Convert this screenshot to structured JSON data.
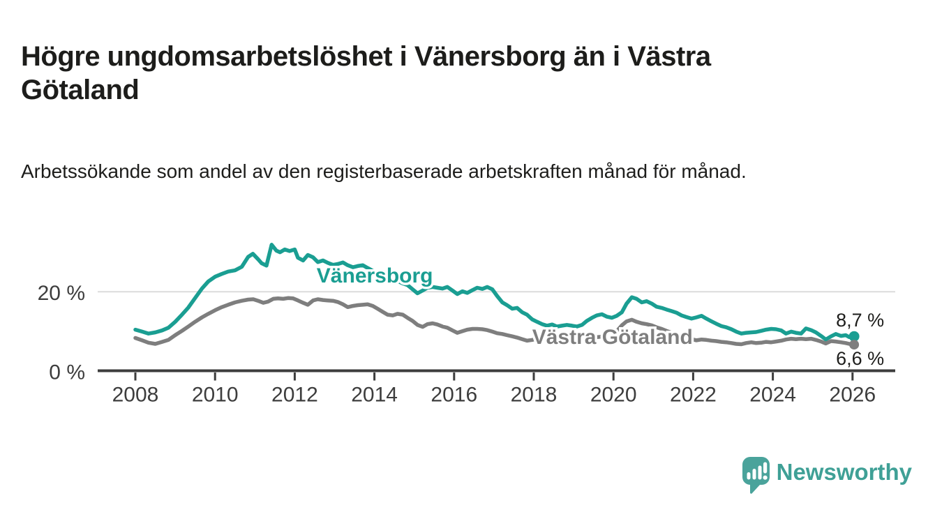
{
  "header": {
    "title": "Högre ungdomsarbetslöshet i Vänersborg än i Västra Götaland",
    "subtitle": "Arbetssökande som andel av den registerbaserade arbetskraften månad för månad."
  },
  "colors": {
    "accent_teal": "#1a9e92",
    "series_gray": "#7e7e7e",
    "text_dark": "#1d1d1b",
    "axis_text": "#3d3d3d",
    "gridline": "#dcdcdc",
    "logo_teal": "#3fa096"
  },
  "logo": {
    "text": "Newsworthy",
    "icon": "newsworthy-speech-bubble-bar-chart-icon"
  },
  "chart_data": {
    "type": "line",
    "title": "Högre ungdomsarbetslöshet i Vänersborg än i Västra Götaland",
    "subtitle": "Arbetssökande som andel av den registerbaserade arbetskraften månad för månad.",
    "unit": "%",
    "x_axis": {
      "ticks": [
        2008,
        2010,
        2012,
        2014,
        2016,
        2018,
        2020,
        2022,
        2024,
        2026
      ],
      "range": [
        2007.05,
        2027.1
      ]
    },
    "y_axis": {
      "labels": [
        {
          "value": 20,
          "label": "20 %"
        },
        {
          "value": 0,
          "label": "0 %"
        }
      ],
      "range": [
        0,
        35.5
      ],
      "gridlines": [
        20
      ]
    },
    "legend_position": "inline-labels",
    "series": [
      {
        "name": "Vänersborg",
        "color": "#1a9e92",
        "label_pos": [
          2012.55,
          22.3
        ],
        "end_label": "8,7 %",
        "end_value": 8.7,
        "end_dot": true,
        "points": [
          [
            2008.0,
            10.4
          ],
          [
            2008.17,
            9.9
          ],
          [
            2008.33,
            9.4
          ],
          [
            2008.5,
            9.7
          ],
          [
            2008.67,
            10.2
          ],
          [
            2008.83,
            10.9
          ],
          [
            2009.0,
            12.4
          ],
          [
            2009.17,
            14.2
          ],
          [
            2009.33,
            16.0
          ],
          [
            2009.5,
            18.4
          ],
          [
            2009.67,
            20.8
          ],
          [
            2009.83,
            22.6
          ],
          [
            2010.0,
            23.8
          ],
          [
            2010.17,
            24.5
          ],
          [
            2010.33,
            25.1
          ],
          [
            2010.5,
            25.4
          ],
          [
            2010.67,
            26.3
          ],
          [
            2010.83,
            28.8
          ],
          [
            2010.95,
            29.6
          ],
          [
            2011.08,
            28.2
          ],
          [
            2011.17,
            27.2
          ],
          [
            2011.29,
            26.6
          ],
          [
            2011.42,
            31.9
          ],
          [
            2011.54,
            30.4
          ],
          [
            2011.63,
            30.0
          ],
          [
            2011.75,
            30.7
          ],
          [
            2011.87,
            30.3
          ],
          [
            2012.0,
            30.7
          ],
          [
            2012.08,
            28.6
          ],
          [
            2012.21,
            27.9
          ],
          [
            2012.33,
            29.3
          ],
          [
            2012.46,
            28.7
          ],
          [
            2012.58,
            27.5
          ],
          [
            2012.71,
            27.9
          ],
          [
            2012.83,
            27.3
          ],
          [
            2012.96,
            26.8
          ],
          [
            2013.08,
            27.0
          ],
          [
            2013.21,
            27.4
          ],
          [
            2013.33,
            26.7
          ],
          [
            2013.46,
            26.2
          ],
          [
            2013.58,
            26.5
          ],
          [
            2013.71,
            26.7
          ],
          [
            2013.83,
            26.0
          ],
          [
            2013.96,
            25.3
          ],
          [
            2014.08,
            24.8
          ],
          [
            2014.21,
            24.3
          ],
          [
            2014.33,
            24.0
          ],
          [
            2014.46,
            23.4
          ],
          [
            2014.58,
            22.7
          ],
          [
            2014.71,
            22.1
          ],
          [
            2014.83,
            21.7
          ],
          [
            2014.96,
            20.6
          ],
          [
            2015.08,
            19.6
          ],
          [
            2015.21,
            20.3
          ],
          [
            2015.33,
            21.0
          ],
          [
            2015.46,
            21.2
          ],
          [
            2015.58,
            21.0
          ],
          [
            2015.71,
            20.8
          ],
          [
            2015.83,
            21.2
          ],
          [
            2015.96,
            20.3
          ],
          [
            2016.08,
            19.4
          ],
          [
            2016.21,
            20.1
          ],
          [
            2016.33,
            19.7
          ],
          [
            2016.46,
            20.4
          ],
          [
            2016.58,
            21.0
          ],
          [
            2016.71,
            20.7
          ],
          [
            2016.83,
            21.2
          ],
          [
            2016.96,
            20.6
          ],
          [
            2017.08,
            18.9
          ],
          [
            2017.21,
            17.3
          ],
          [
            2017.33,
            16.6
          ],
          [
            2017.46,
            15.7
          ],
          [
            2017.58,
            15.9
          ],
          [
            2017.71,
            14.8
          ],
          [
            2017.83,
            14.2
          ],
          [
            2017.96,
            13.0
          ],
          [
            2018.08,
            12.4
          ],
          [
            2018.21,
            11.8
          ],
          [
            2018.33,
            11.4
          ],
          [
            2018.46,
            11.7
          ],
          [
            2018.58,
            11.2
          ],
          [
            2018.71,
            11.4
          ],
          [
            2018.83,
            11.6
          ],
          [
            2018.96,
            11.4
          ],
          [
            2019.08,
            11.2
          ],
          [
            2019.21,
            11.6
          ],
          [
            2019.33,
            12.6
          ],
          [
            2019.46,
            13.4
          ],
          [
            2019.58,
            14.0
          ],
          [
            2019.71,
            14.3
          ],
          [
            2019.83,
            13.7
          ],
          [
            2019.96,
            13.4
          ],
          [
            2020.08,
            13.9
          ],
          [
            2020.21,
            14.8
          ],
          [
            2020.33,
            17.0
          ],
          [
            2020.46,
            18.6
          ],
          [
            2020.58,
            18.2
          ],
          [
            2020.71,
            17.3
          ],
          [
            2020.83,
            17.6
          ],
          [
            2020.96,
            17.0
          ],
          [
            2021.08,
            16.2
          ],
          [
            2021.21,
            15.9
          ],
          [
            2021.33,
            15.5
          ],
          [
            2021.46,
            15.1
          ],
          [
            2021.58,
            14.7
          ],
          [
            2021.71,
            14.0
          ],
          [
            2021.83,
            13.6
          ],
          [
            2021.96,
            13.2
          ],
          [
            2022.08,
            13.5
          ],
          [
            2022.21,
            13.9
          ],
          [
            2022.33,
            13.2
          ],
          [
            2022.46,
            12.5
          ],
          [
            2022.58,
            11.9
          ],
          [
            2022.71,
            11.3
          ],
          [
            2022.83,
            11.0
          ],
          [
            2022.96,
            10.5
          ],
          [
            2023.08,
            9.9
          ],
          [
            2023.21,
            9.4
          ],
          [
            2023.33,
            9.6
          ],
          [
            2023.46,
            9.7
          ],
          [
            2023.58,
            9.8
          ],
          [
            2023.71,
            10.1
          ],
          [
            2023.83,
            10.4
          ],
          [
            2023.96,
            10.6
          ],
          [
            2024.08,
            10.5
          ],
          [
            2024.21,
            10.2
          ],
          [
            2024.33,
            9.4
          ],
          [
            2024.46,
            9.9
          ],
          [
            2024.58,
            9.6
          ],
          [
            2024.71,
            9.4
          ],
          [
            2024.83,
            10.7
          ],
          [
            2024.96,
            10.3
          ],
          [
            2025.08,
            9.7
          ],
          [
            2025.21,
            8.8
          ],
          [
            2025.33,
            7.9
          ],
          [
            2025.46,
            8.7
          ],
          [
            2025.58,
            9.3
          ],
          [
            2025.71,
            8.8
          ],
          [
            2025.83,
            9.0
          ],
          [
            2025.92,
            8.5
          ],
          [
            2026.04,
            8.7
          ]
        ]
      },
      {
        "name": "Västra Götaland",
        "color": "#7e7e7e",
        "label_pos": [
          2017.96,
          6.8
        ],
        "end_label": "6,6 %",
        "end_value": 6.6,
        "end_dot": true,
        "points": [
          [
            2008.0,
            8.3
          ],
          [
            2008.17,
            7.7
          ],
          [
            2008.33,
            7.1
          ],
          [
            2008.5,
            6.8
          ],
          [
            2008.67,
            7.3
          ],
          [
            2008.83,
            7.8
          ],
          [
            2009.0,
            9.0
          ],
          [
            2009.17,
            10.1
          ],
          [
            2009.33,
            11.2
          ],
          [
            2009.5,
            12.4
          ],
          [
            2009.67,
            13.5
          ],
          [
            2009.83,
            14.4
          ],
          [
            2010.0,
            15.3
          ],
          [
            2010.17,
            16.1
          ],
          [
            2010.33,
            16.7
          ],
          [
            2010.5,
            17.3
          ],
          [
            2010.67,
            17.7
          ],
          [
            2010.83,
            18.0
          ],
          [
            2010.96,
            18.1
          ],
          [
            2011.08,
            17.7
          ],
          [
            2011.21,
            17.2
          ],
          [
            2011.33,
            17.5
          ],
          [
            2011.46,
            18.2
          ],
          [
            2011.58,
            18.3
          ],
          [
            2011.71,
            18.2
          ],
          [
            2011.83,
            18.4
          ],
          [
            2011.96,
            18.3
          ],
          [
            2012.08,
            17.8
          ],
          [
            2012.21,
            17.2
          ],
          [
            2012.33,
            16.7
          ],
          [
            2012.46,
            17.8
          ],
          [
            2012.58,
            18.1
          ],
          [
            2012.71,
            17.9
          ],
          [
            2012.83,
            17.8
          ],
          [
            2012.96,
            17.7
          ],
          [
            2013.08,
            17.4
          ],
          [
            2013.21,
            16.8
          ],
          [
            2013.33,
            16.1
          ],
          [
            2013.46,
            16.4
          ],
          [
            2013.58,
            16.6
          ],
          [
            2013.71,
            16.7
          ],
          [
            2013.83,
            16.8
          ],
          [
            2013.96,
            16.4
          ],
          [
            2014.08,
            15.7
          ],
          [
            2014.21,
            14.9
          ],
          [
            2014.33,
            14.2
          ],
          [
            2014.46,
            14.0
          ],
          [
            2014.58,
            14.4
          ],
          [
            2014.71,
            14.2
          ],
          [
            2014.83,
            13.4
          ],
          [
            2014.96,
            12.6
          ],
          [
            2015.08,
            11.6
          ],
          [
            2015.21,
            11.1
          ],
          [
            2015.33,
            11.8
          ],
          [
            2015.46,
            12.0
          ],
          [
            2015.58,
            11.7
          ],
          [
            2015.71,
            11.2
          ],
          [
            2015.83,
            10.9
          ],
          [
            2015.96,
            10.2
          ],
          [
            2016.08,
            9.6
          ],
          [
            2016.21,
            10.0
          ],
          [
            2016.33,
            10.4
          ],
          [
            2016.46,
            10.6
          ],
          [
            2016.58,
            10.6
          ],
          [
            2016.71,
            10.5
          ],
          [
            2016.83,
            10.3
          ],
          [
            2016.96,
            9.9
          ],
          [
            2017.08,
            9.5
          ],
          [
            2017.21,
            9.3
          ],
          [
            2017.33,
            9.0
          ],
          [
            2017.46,
            8.7
          ],
          [
            2017.58,
            8.4
          ],
          [
            2017.71,
            8.0
          ],
          [
            2017.83,
            7.6
          ],
          [
            2017.96,
            7.8
          ],
          [
            2018.08,
            8.1
          ],
          [
            2018.21,
            8.2
          ],
          [
            2018.33,
            8.0
          ],
          [
            2018.5,
            7.9
          ],
          [
            2018.67,
            7.8
          ],
          [
            2018.83,
            7.7
          ],
          [
            2019.0,
            7.8
          ],
          [
            2019.17,
            8.0
          ],
          [
            2019.33,
            8.2
          ],
          [
            2019.5,
            8.4
          ],
          [
            2019.67,
            8.6
          ],
          [
            2019.83,
            8.9
          ],
          [
            2019.96,
            9.3
          ],
          [
            2020.08,
            10.0
          ],
          [
            2020.21,
            11.5
          ],
          [
            2020.33,
            12.5
          ],
          [
            2020.46,
            12.9
          ],
          [
            2020.58,
            12.4
          ],
          [
            2020.71,
            12.0
          ],
          [
            2020.83,
            11.8
          ],
          [
            2020.96,
            11.5
          ],
          [
            2021.08,
            11.0
          ],
          [
            2021.21,
            10.6
          ],
          [
            2021.33,
            10.1
          ],
          [
            2021.46,
            9.6
          ],
          [
            2021.58,
            9.2
          ],
          [
            2021.71,
            8.8
          ],
          [
            2021.83,
            8.4
          ],
          [
            2021.96,
            8.0
          ],
          [
            2022.08,
            7.7
          ],
          [
            2022.21,
            7.9
          ],
          [
            2022.33,
            7.8
          ],
          [
            2022.46,
            7.6
          ],
          [
            2022.58,
            7.5
          ],
          [
            2022.71,
            7.3
          ],
          [
            2022.83,
            7.2
          ],
          [
            2022.96,
            7.0
          ],
          [
            2023.08,
            6.8
          ],
          [
            2023.21,
            6.7
          ],
          [
            2023.33,
            7.0
          ],
          [
            2023.46,
            7.2
          ],
          [
            2023.58,
            7.0
          ],
          [
            2023.71,
            7.1
          ],
          [
            2023.83,
            7.3
          ],
          [
            2023.96,
            7.2
          ],
          [
            2024.08,
            7.4
          ],
          [
            2024.21,
            7.6
          ],
          [
            2024.33,
            7.9
          ],
          [
            2024.46,
            8.1
          ],
          [
            2024.58,
            8.0
          ],
          [
            2024.71,
            8.1
          ],
          [
            2024.83,
            8.0
          ],
          [
            2024.96,
            8.1
          ],
          [
            2025.08,
            7.8
          ],
          [
            2025.21,
            7.4
          ],
          [
            2025.33,
            6.9
          ],
          [
            2025.46,
            7.5
          ],
          [
            2025.58,
            7.4
          ],
          [
            2025.71,
            7.2
          ],
          [
            2025.83,
            7.0
          ],
          [
            2025.92,
            6.8
          ],
          [
            2026.04,
            6.6
          ]
        ]
      }
    ]
  }
}
